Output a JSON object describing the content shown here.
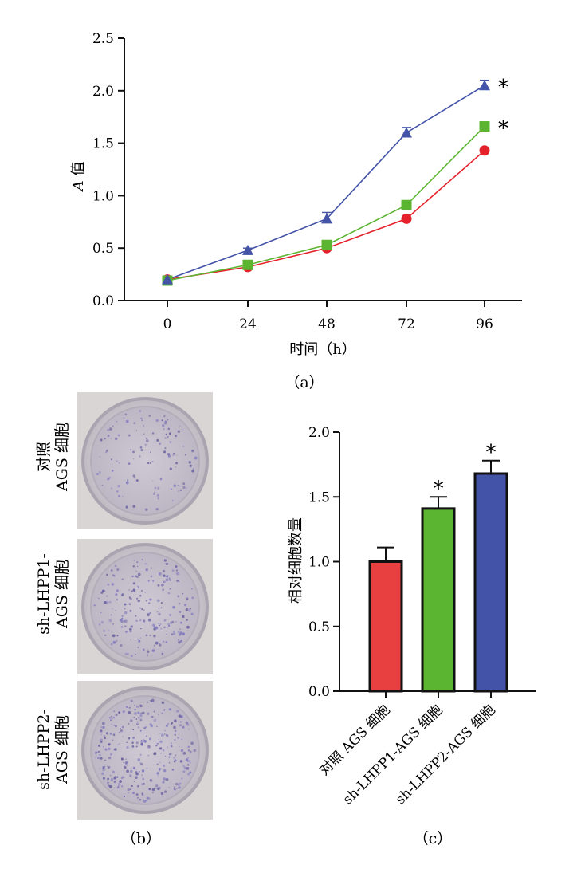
{
  "charts": {
    "a": {
      "panel_label": "（a）",
      "ylabel_italic": "A",
      "ylabel_rest": " 值",
      "xlabel": "时间（h）"
    },
    "b": {
      "panel_label": "（b）",
      "rows": [
        {
          "line1": "对照",
          "line2": "AGS 细胞"
        },
        {
          "line1": "sh-LHPP1-",
          "line2": "AGS 细胞"
        },
        {
          "line1": "sh-LHPP2-",
          "line2": "AGS 细胞"
        }
      ]
    },
    "c": {
      "panel_label": "（c）",
      "ylabel": "相对细胞数量"
    }
  },
  "chart_data": [
    {
      "type": "line",
      "x": [
        0,
        24,
        48,
        72,
        96
      ],
      "xticks": [
        "0",
        "24",
        "48",
        "72",
        "96"
      ],
      "ylim": [
        0,
        2.5
      ],
      "yticks": [
        "0.0",
        "0.5",
        "1.0",
        "1.5",
        "2.0",
        "2.5"
      ],
      "xlabel": "时间（h）",
      "ylabel": "A 值",
      "series": [
        {
          "color": "#4353a8",
          "marker": "triangle",
          "values": [
            0.2,
            0.48,
            0.78,
            1.6,
            2.05
          ],
          "errors": [
            0.01,
            0.02,
            0.06,
            0.05,
            0.05
          ],
          "annotation": "*"
        },
        {
          "color": "#5cb531",
          "marker": "square",
          "values": [
            0.19,
            0.34,
            0.53,
            0.91,
            1.66
          ],
          "errors": [
            0,
            0,
            0,
            0,
            0
          ],
          "annotation": "*"
        },
        {
          "color": "#e5212b",
          "marker": "circle",
          "values": [
            0.2,
            0.32,
            0.5,
            0.78,
            1.43
          ],
          "errors": [
            0,
            0,
            0,
            0,
            0
          ],
          "annotation": ""
        }
      ]
    },
    {
      "type": "bar",
      "categories": [
        "对照 AGS 细胞",
        "sh-LHPP1-AGS 细胞",
        "sh-LHPP2-AGS 细胞"
      ],
      "values": [
        1.0,
        1.41,
        1.68
      ],
      "errors": [
        0.11,
        0.09,
        0.1
      ],
      "colors": [
        "#e84040",
        "#5cb531",
        "#4353a8"
      ],
      "annotations": [
        "",
        "*",
        "*"
      ],
      "ylim": [
        0,
        2.0
      ],
      "yticks": [
        "0.0",
        "0.5",
        "1.0",
        "1.5",
        "2.0"
      ],
      "ylabel": "相对细胞数量"
    }
  ]
}
